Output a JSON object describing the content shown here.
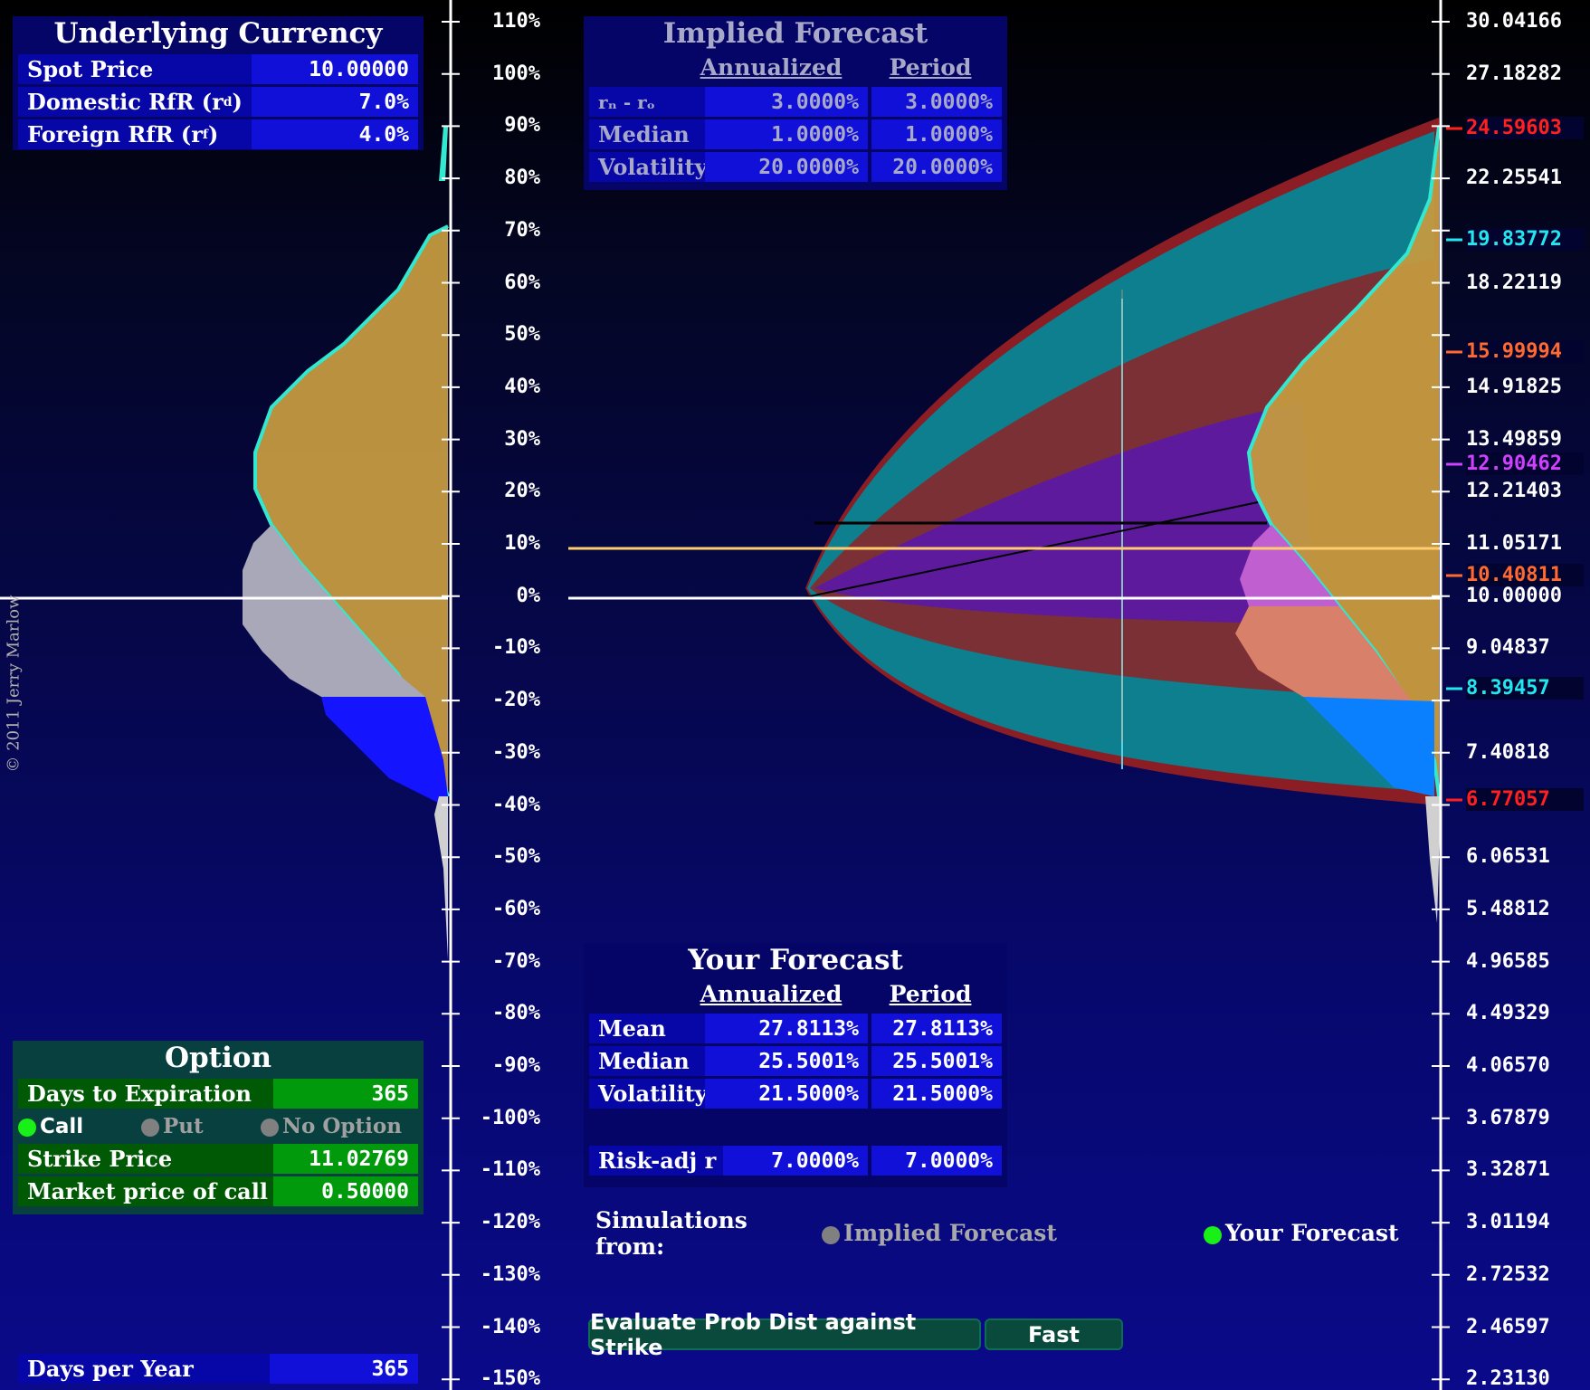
{
  "underlying": {
    "title": "Underlying Currency",
    "spot_label": "Spot Price",
    "spot_value": "10.00000",
    "domestic_label": "Domestic RfR (r",
    "domestic_sub": "d",
    "domestic_value": "7.0%",
    "foreign_label": "Foreign RfR (r",
    "foreign_sub": "f",
    "foreign_value": "4.0%"
  },
  "implied": {
    "title": "Implied Forecast",
    "col_annualized": "Annualized",
    "col_period": "Period",
    "rows": [
      {
        "label": "r",
        "annual": "3.0000%",
        "period": "3.0000%"
      },
      {
        "label": "Median",
        "annual": "1.0000%",
        "period": "1.0000%"
      },
      {
        "label": "Volatility",
        "annual": "20.0000%",
        "period": "20.0000%"
      }
    ],
    "rdrf_label": "rₙ - rₒ"
  },
  "your_forecast": {
    "title": "Your Forecast",
    "col_annualized": "Annualized",
    "col_period": "Period",
    "rows": [
      {
        "label": "Mean",
        "annual": "27.8113%",
        "period": "27.8113%"
      },
      {
        "label": "Median",
        "annual": "25.5001%",
        "period": "25.5001%"
      },
      {
        "label": "Volatility",
        "annual": "21.5000%",
        "period": "21.5000%"
      }
    ],
    "risk_label": "Risk-adj r",
    "risk_annual": "7.0000%",
    "risk_period": "7.0000%"
  },
  "option": {
    "title": "Option",
    "days_label": "Days to Expiration",
    "days_value": "365",
    "call": "Call",
    "put": "Put",
    "no_option": "No Option",
    "strike_label": "Strike Price",
    "strike_value": "11.02769",
    "market_label": "Market price of call",
    "market_value": "0.50000",
    "selected": "Call"
  },
  "days_per_year": {
    "label": "Days per Year",
    "value": "365"
  },
  "simulations": {
    "label": "Simulations from:",
    "implied": "Implied Forecast",
    "yours": "Your Forecast",
    "selected": "Your Forecast"
  },
  "buttons": {
    "evaluate": "Evaluate Prob Dist against Strike",
    "fast": "Fast"
  },
  "copyright": "© 2011  Jerry Marlow",
  "percent_axis": [
    "110%",
    "100%",
    "90%",
    "80%",
    "70%",
    "60%",
    "50%",
    "40%",
    "30%",
    "20%",
    "10%",
    "0%",
    "-10%",
    "-20%",
    "-30%",
    "-40%",
    "-50%",
    "-60%",
    "-70%",
    "-80%",
    "-90%",
    "-100%",
    "-110%",
    "-120%",
    "-130%",
    "-140%",
    "-150%"
  ],
  "price_axis": [
    "30.04166",
    "27.18282",
    "",
    "22.25541",
    "",
    "18.22119",
    "",
    "14.91825",
    "13.49859",
    "12.21403",
    "11.05171",
    "10.00000",
    "9.04837",
    "",
    "7.40818",
    "",
    "6.06531",
    "5.48812",
    "4.96585",
    "4.49329",
    "4.06570",
    "3.67879",
    "3.32871",
    "3.01194",
    "2.72532",
    "2.46597",
    "2.23130"
  ],
  "price_markers": [
    {
      "value": "24.59603",
      "color": "#ff2020"
    },
    {
      "value": "19.83772",
      "color": "#22e6f0"
    },
    {
      "value": "15.99994",
      "color": "#ff6a30"
    },
    {
      "value": "12.90462",
      "color": "#d040ff"
    },
    {
      "value": "10.40811",
      "color": "#ff6a30"
    },
    {
      "value": "8.39457",
      "color": "#22e6f0"
    },
    {
      "value": "6.77057",
      "color": "#ff2020"
    }
  ],
  "colors": {
    "panel_blue": "#0707a8",
    "value_blue": "#1010d8",
    "option_green": "#009a0c",
    "teal": "#0a7f8c",
    "maroon": "#7b3035",
    "purple": "#5e1a9c",
    "strike_line": "#ffcc70"
  }
}
